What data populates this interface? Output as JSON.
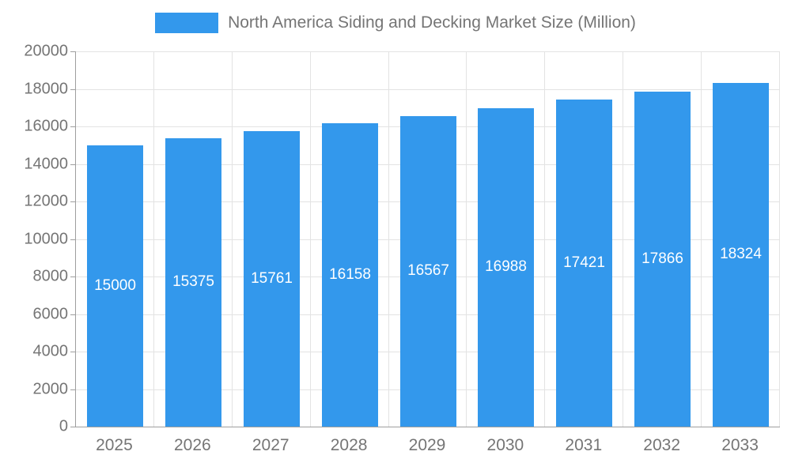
{
  "chart_data": {
    "type": "bar",
    "title": "North America Siding and Decking Market Size (Million)",
    "legend": {
      "position": "top",
      "entries": [
        "North America Siding and Decking Market Size (Million)"
      ]
    },
    "categories": [
      "2025",
      "2026",
      "2027",
      "2028",
      "2029",
      "2030",
      "2031",
      "2032",
      "2033"
    ],
    "series": [
      {
        "name": "North America Siding and Decking Market Size (Million)",
        "values": [
          15000,
          15375,
          15761,
          16158,
          16567,
          16988,
          17421,
          17866,
          18324
        ]
      }
    ],
    "data_labels": [
      "15000",
      "15375",
      "15761",
      "16158",
      "16567",
      "16988",
      "17421",
      "17866",
      "18324"
    ],
    "xlabel": "",
    "ylabel": "",
    "ylim": [
      0,
      20000
    ],
    "y_tick_step": 2000,
    "y_tick_labels": [
      "0",
      "2000",
      "4000",
      "6000",
      "8000",
      "10000",
      "12000",
      "14000",
      "16000",
      "18000",
      "20000"
    ],
    "grid": true,
    "colors": {
      "bar": "#3398EC",
      "bar_label_text": "#FFFFFF",
      "axis_text": "#757575",
      "axis_line": "#9E9E9E",
      "gridline": "#E3E3E3",
      "background": "#FFFFFF"
    }
  }
}
